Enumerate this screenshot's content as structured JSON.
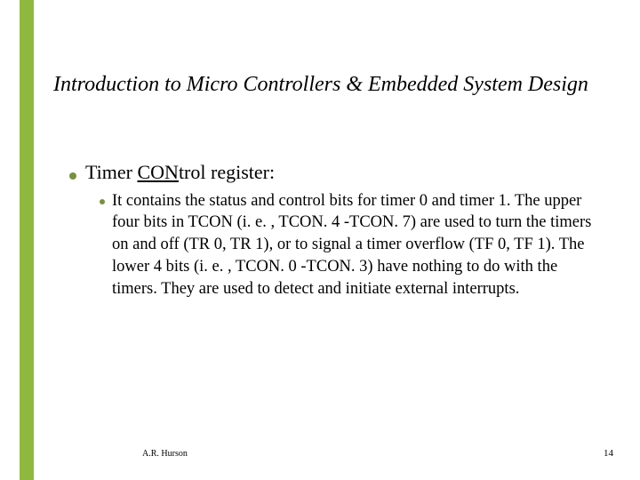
{
  "accent_color": "#8fb83f",
  "bullet_color": "#76923c",
  "background_color": "#ffffff",
  "slide": {
    "title": "Introduction to Micro Controllers & Embedded System Design",
    "title_fontsize": 24,
    "title_style": "italic"
  },
  "content": {
    "heading_fontsize": 22,
    "body_fontsize": 18.5,
    "heading_prefix": "Timer ",
    "heading_underlined": "CON",
    "heading_suffix": "trol register:",
    "sub_text": "It contains the status and control bits for timer 0 and timer 1.  The upper four bits in TCON (i. e. , TCON. 4 -TCON. 7) are used to turn the timers on and off (TR 0, TR 1), or to signal a timer overflow (TF 0, TF 1).  The lower 4 bits (i. e. , TCON. 0 -TCON. 3) have nothing to do with the timers.  They are used to detect and initiate external interrupts."
  },
  "footer": {
    "author": "A.R. Hurson",
    "page": "14"
  }
}
